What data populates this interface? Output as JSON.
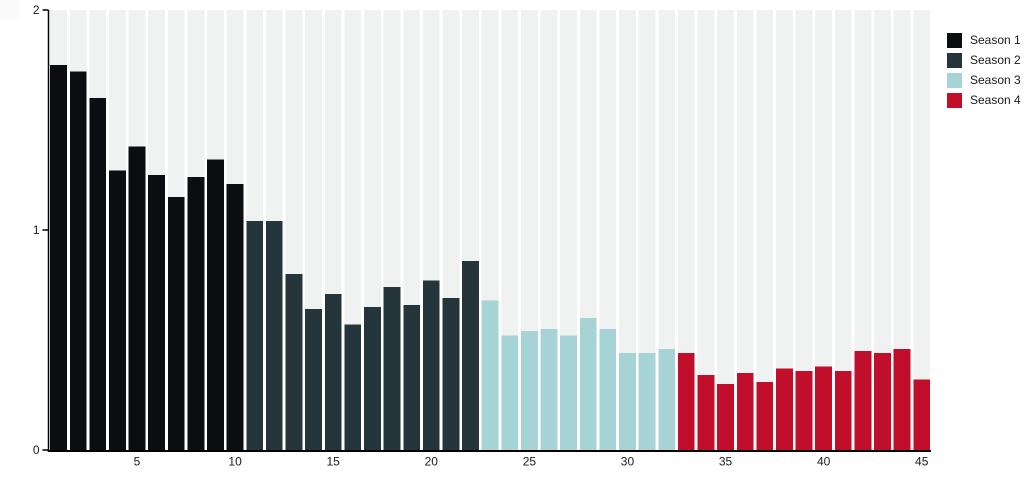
{
  "chart_data": {
    "type": "bar",
    "title": "",
    "xlabel": "",
    "ylabel": "",
    "xlim": [
      0.5,
      45.5
    ],
    "ylim": [
      0,
      2
    ],
    "x_ticks": [
      5,
      10,
      15,
      20,
      25,
      30,
      35,
      40,
      45
    ],
    "y_ticks": [
      0,
      1,
      2
    ],
    "grid": "striped-column-background",
    "legend_position": "top-right-outside",
    "bar_count": 45,
    "series": [
      {
        "name": "Season 1",
        "color": "#0b0d10",
        "x_start": 1,
        "values": [
          1.75,
          1.72,
          1.6,
          1.27,
          1.38,
          1.25,
          1.15,
          1.24,
          1.32,
          1.21
        ]
      },
      {
        "name": "Season 2",
        "color": "#24353c",
        "x_start": 11,
        "values": [
          1.04,
          1.04,
          0.8,
          0.64,
          0.71,
          0.57,
          0.65,
          0.74,
          0.66,
          0.77,
          0.69,
          0.86
        ]
      },
      {
        "name": "Season 3",
        "color": "#a5d3d6",
        "x_start": 23,
        "values": [
          0.68,
          0.52,
          0.54,
          0.55,
          0.52,
          0.6,
          0.55,
          0.44,
          0.44,
          0.46
        ]
      },
      {
        "name": "Season 4",
        "color": "#c10e2b",
        "x_start": 33,
        "values": [
          0.44,
          0.34,
          0.3,
          0.35,
          0.31,
          0.37,
          0.36,
          0.38,
          0.36,
          0.45,
          0.44,
          0.46,
          0.32
        ]
      }
    ]
  },
  "colors": {
    "background": "#ffffff",
    "stripe": "#f0f1f1",
    "axis": "#000000",
    "tick_label": "#1a1a1a",
    "legend_text": "#1a1a1a"
  }
}
